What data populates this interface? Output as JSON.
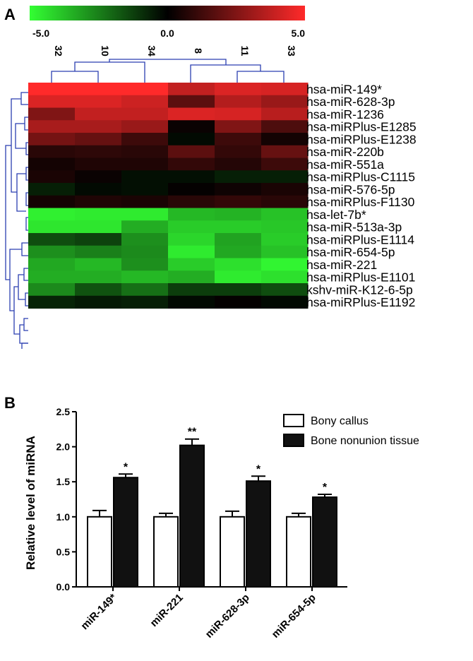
{
  "panel_a": {
    "label": "A",
    "colorbar": {
      "min_label": "-5.0",
      "mid_label": "0.0",
      "max_label": "5.0",
      "low_color": "#33ff33",
      "mid_color": "#000000",
      "high_color": "#ff2a2a"
    }
  },
  "panel_b": {
    "label": "B"
  },
  "chart_data": [
    {
      "type": "heatmap",
      "columns": [
        "32",
        "10",
        "34",
        "8",
        "11",
        "33"
      ],
      "rows": [
        "hsa-miR-149*",
        "hsa-miR-628-3p",
        "hsa-miR-1236",
        "hsa-miRPlus-E1285",
        "hsa-miRPlus-E1238",
        "hsa-miR-220b",
        "hsa-miR-551a",
        "hsa-miRPlus-C1115",
        "hsa-miR-576-5p",
        "hsa-miRPlus-F1130",
        "hsa-let-7b*",
        "hsa-miR-513a-3p",
        "hsa-miRPlus-E1114",
        "hsa-miR-654-5p",
        "hsa-miR-221",
        "hsa-miRPlus-E1101",
        "kshv-miR-K12-6-5p",
        "hsa-miRPlus-E1192"
      ],
      "values": [
        [
          5.0,
          5.0,
          5.0,
          3.8,
          4.3,
          4.2
        ],
        [
          4.3,
          4.3,
          4.0,
          1.8,
          3.5,
          3.0
        ],
        [
          2.5,
          3.8,
          3.8,
          4.3,
          4.2,
          3.6
        ],
        [
          3.3,
          3.3,
          3.0,
          0.2,
          2.5,
          1.5
        ],
        [
          2.3,
          2.0,
          1.2,
          -0.2,
          1.2,
          0.4
        ],
        [
          0.8,
          0.9,
          0.8,
          1.8,
          1.0,
          2.0
        ],
        [
          0.4,
          0.6,
          0.6,
          1.0,
          0.7,
          1.2
        ],
        [
          0.5,
          0.2,
          -0.3,
          -0.3,
          -0.6,
          -0.6
        ],
        [
          -0.6,
          -0.2,
          -0.3,
          0.1,
          0.3,
          0.5
        ],
        [
          0.4,
          0.6,
          0.5,
          0.8,
          1.0,
          0.8
        ],
        [
          -4.7,
          -4.6,
          -4.6,
          -3.6,
          -3.5,
          -3.8
        ],
        [
          -4.5,
          -4.5,
          -3.4,
          -4.0,
          -4.0,
          -3.9
        ],
        [
          -1.5,
          -1.3,
          -2.8,
          -4.2,
          -3.2,
          -4.0
        ],
        [
          -2.8,
          -2.5,
          -2.7,
          -4.6,
          -3.3,
          -3.8
        ],
        [
          -3.3,
          -3.6,
          -2.8,
          -4.0,
          -4.4,
          -4.8
        ],
        [
          -3.4,
          -3.4,
          -3.6,
          -3.4,
          -4.6,
          -4.4
        ],
        [
          -2.7,
          -1.6,
          -2.2,
          -1.2,
          -1.2,
          -1.5
        ],
        [
          -0.7,
          -0.5,
          -0.6,
          -0.2,
          0.1,
          -0.2
        ]
      ],
      "color_scale": [
        -5.0,
        5.0
      ]
    },
    {
      "type": "bar",
      "categories": [
        "miR-149*",
        "miR-221",
        "miR-628-3p",
        "miR-654-5p"
      ],
      "series": [
        {
          "name": "Bony callus",
          "values": [
            1.0,
            1.0,
            1.0,
            1.0
          ],
          "errors": [
            0.09,
            0.05,
            0.08,
            0.05
          ],
          "color": "#ffffff"
        },
        {
          "name": "Bone nonunion tissue",
          "values": [
            1.56,
            2.02,
            1.51,
            1.28
          ],
          "errors": [
            0.05,
            0.09,
            0.07,
            0.04
          ],
          "color": "#111111"
        }
      ],
      "significance": [
        "*",
        "**",
        "*",
        "*"
      ],
      "ylabel": "Relative level of miRNA",
      "ylim": [
        0,
        2.5
      ],
      "yticks": [
        "0.0",
        "0.5",
        "1.0",
        "1.5",
        "2.0",
        "2.5"
      ],
      "legend_position": "top-right",
      "grid": false
    }
  ]
}
